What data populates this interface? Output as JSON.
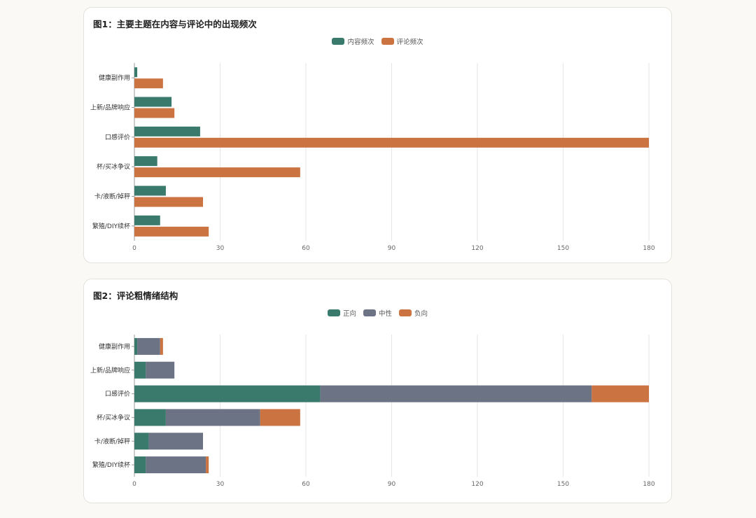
{
  "colors": {
    "green": "#3a7a6c",
    "orange": "#cb7341",
    "gray": "#6b7385",
    "grid": "#e6e6e6",
    "axis": "#999999"
  },
  "chart1": {
    "title": "图1：主要主题在内容与评论中的出现频次",
    "legend": [
      {
        "label": "内容频次",
        "color": "#3a7a6c"
      },
      {
        "label": "评论频次",
        "color": "#cb7341"
      }
    ]
  },
  "chart2": {
    "title": "图2：评论粗情绪结构",
    "legend": [
      {
        "label": "正向",
        "color": "#3a7a6c"
      },
      {
        "label": "中性",
        "color": "#6b7385"
      },
      {
        "label": "负向",
        "color": "#cb7341"
      }
    ]
  },
  "chart_data": [
    {
      "type": "bar",
      "orientation": "horizontal",
      "title": "图1：主要主题在内容与评论中的出现频次",
      "categories": [
        "健康副作用",
        "上新/品牌响应",
        "口感评价",
        "杯/买冰争议",
        "卡/液断/掉秤",
        "繁殖/DIY续杯"
      ],
      "categories_visible": [
        "健康副作用",
        "上新/品牌响应",
        "口感评价",
        "杯/买冰争议",
        "卡/液断/掉秤",
        "繁殖/DIY续杯"
      ],
      "series": [
        {
          "name": "内容频次",
          "color": "#3a7a6c",
          "values": [
            1,
            13,
            23,
            8,
            11,
            9
          ]
        },
        {
          "name": "评论频次",
          "color": "#cb7341",
          "values": [
            10,
            14,
            180,
            58,
            24,
            26
          ]
        }
      ],
      "xlim": [
        0,
        180
      ],
      "xticks": [
        0,
        30,
        60,
        90,
        120,
        150,
        180
      ],
      "grid": true,
      "legend_position": "top-center"
    },
    {
      "type": "bar",
      "orientation": "horizontal",
      "stacked": true,
      "title": "图2：评论粗情绪结构",
      "categories": [
        "健康副作用",
        "上新/品牌响应",
        "口感评价",
        "杯/买冰争议",
        "卡/液断/掉秤",
        "繁殖/DIY续杯"
      ],
      "series": [
        {
          "name": "正向",
          "color": "#3a7a6c",
          "values": [
            1,
            4,
            65,
            11,
            5,
            4
          ]
        },
        {
          "name": "中性",
          "color": "#6b7385",
          "values": [
            8,
            10,
            95,
            33,
            19,
            21
          ]
        },
        {
          "name": "负向",
          "color": "#cb7341",
          "values": [
            1,
            0,
            20,
            14,
            0,
            1
          ]
        }
      ],
      "xlim": [
        0,
        180
      ],
      "xticks": [
        0,
        30,
        60,
        90,
        120,
        150,
        180
      ],
      "grid": true,
      "legend_position": "top-center"
    }
  ]
}
